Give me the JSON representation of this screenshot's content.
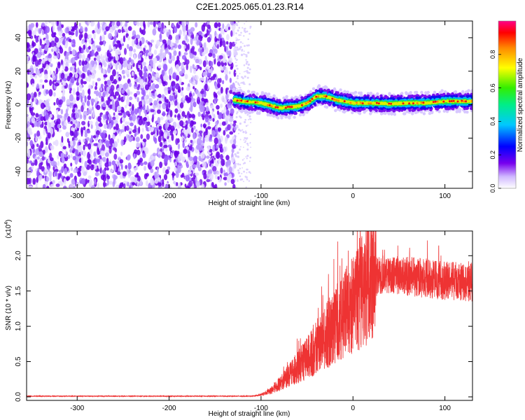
{
  "figure": {
    "title": "C2E1.2025.065.01.23.R14"
  },
  "colors": {
    "snr_line": "#ee3333",
    "axis": "#000000",
    "background": "#ffffff"
  },
  "chart_data": [
    {
      "type": "heatmap",
      "name": "spectrogram",
      "xlabel": "Height of straight line (km)",
      "ylabel": "Frequency (Hz)",
      "xlim": [
        -355,
        130
      ],
      "ylim": [
        -50,
        50
      ],
      "x_ticks": [
        -300,
        -200,
        -100,
        0,
        100
      ],
      "x_tick_labels": [
        "-300",
        "-200",
        "-100",
        "0",
        "100"
      ],
      "y_ticks": [
        -40,
        -20,
        0,
        20,
        40
      ],
      "y_tick_labels": [
        "-40",
        "-20",
        "0",
        "20",
        "40"
      ],
      "noise_region_end": -128,
      "signal_start": -130,
      "signal_center_trace": [
        [
          -130,
          3
        ],
        [
          -120,
          2
        ],
        [
          -100,
          1
        ],
        [
          -80,
          -2
        ],
        [
          -60,
          -1
        ],
        [
          -50,
          1
        ],
        [
          -40,
          5
        ],
        [
          -30,
          5
        ],
        [
          -20,
          3
        ],
        [
          -10,
          2
        ],
        [
          0,
          1
        ],
        [
          20,
          1
        ],
        [
          40,
          0.5
        ],
        [
          60,
          1
        ],
        [
          80,
          1
        ],
        [
          100,
          2
        ],
        [
          120,
          2
        ],
        [
          130,
          2
        ]
      ],
      "colorbar": {
        "label": "Normalized spectral amplitude",
        "range": [
          0,
          1
        ],
        "ticks": [
          0.0,
          0.2,
          0.4,
          0.6,
          0.8
        ],
        "tick_labels": [
          "0.0",
          "0.2",
          "0.4",
          "0.6",
          "0.8"
        ]
      }
    },
    {
      "type": "line",
      "name": "snr",
      "xlabel": "Height of straight line (km)",
      "ylabel": "SNR (10 * v/v)",
      "y_multiplier": "(x10",
      "y_multiplier_exp": "4",
      "y_multiplier_close": ")",
      "xlim": [
        -355,
        130
      ],
      "ylim": [
        -0.05,
        2.35
      ],
      "x_ticks": [
        -300,
        -200,
        -100,
        0,
        100
      ],
      "x_tick_labels": [
        "-300",
        "-200",
        "-100",
        "0",
        "100"
      ],
      "y_ticks": [
        0.0,
        0.5,
        1.0,
        1.5,
        2.0
      ],
      "y_tick_labels": [
        "0.0",
        "0.5",
        "1.0",
        "1.5",
        "2.0"
      ],
      "envelope": [
        [
          -355,
          0.01
        ],
        [
          -110,
          0.01
        ],
        [
          -100,
          0.03
        ],
        [
          -90,
          0.08
        ],
        [
          -80,
          0.18
        ],
        [
          -70,
          0.3
        ],
        [
          -60,
          0.42
        ],
        [
          -50,
          0.55
        ],
        [
          -40,
          0.7
        ],
        [
          -30,
          0.85
        ],
        [
          -20,
          1.0
        ],
        [
          -10,
          1.15
        ],
        [
          0,
          1.3
        ],
        [
          10,
          1.55
        ],
        [
          20,
          1.68
        ],
        [
          30,
          1.73
        ],
        [
          50,
          1.72
        ],
        [
          80,
          1.68
        ],
        [
          100,
          1.65
        ],
        [
          130,
          1.62
        ]
      ]
    }
  ]
}
